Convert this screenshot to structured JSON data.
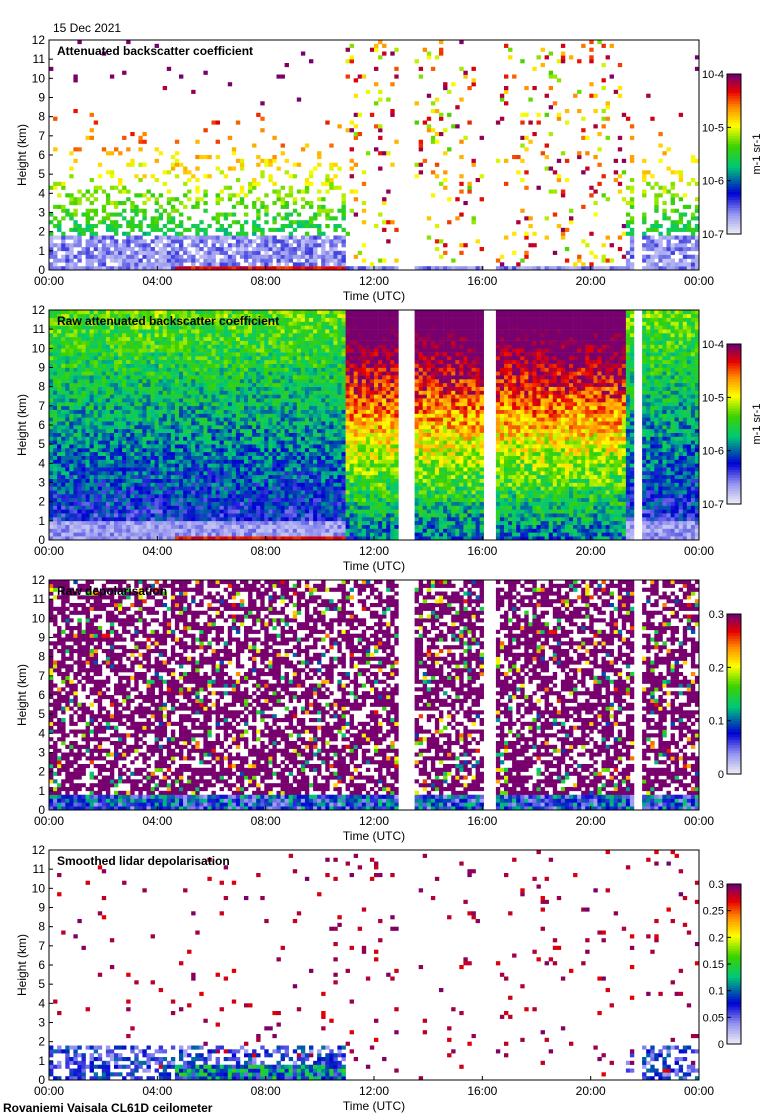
{
  "figure": {
    "date": "15 Dec 2021",
    "footer": "Rovaniemi Vaisala CL61D ceilometer"
  },
  "chart_data": [
    {
      "type": "heatmap",
      "title": "Attenuated backscatter coefficient",
      "xlabel": "Time (UTC)",
      "ylabel": "Height (km)",
      "x_ticks": [
        "00:00",
        "04:00",
        "08:00",
        "12:00",
        "16:00",
        "20:00",
        "00:00"
      ],
      "x_range_hours": [
        0,
        24
      ],
      "y_ticks": [
        0,
        1,
        2,
        3,
        4,
        5,
        6,
        7,
        8,
        9,
        10,
        11,
        12
      ],
      "ylim": [
        0,
        12
      ],
      "colorbar": {
        "scale": "log",
        "ticks": [
          1e-07,
          1e-06,
          1e-05,
          0.0001
        ],
        "tick_labels": [
          "10-7",
          "10-6",
          "10-5",
          "10-4"
        ],
        "unit": "m-1 sr-1"
      },
      "pattern": "filtered"
    },
    {
      "type": "heatmap",
      "title": "Raw attenuated backscatter coefficient",
      "xlabel": "Time (UTC)",
      "ylabel": "Height (km)",
      "x_ticks": [
        "00:00",
        "04:00",
        "08:00",
        "12:00",
        "16:00",
        "20:00",
        "00:00"
      ],
      "x_range_hours": [
        0,
        24
      ],
      "y_ticks": [
        0,
        1,
        2,
        3,
        4,
        5,
        6,
        7,
        8,
        9,
        10,
        11,
        12
      ],
      "ylim": [
        0,
        12
      ],
      "colorbar": {
        "scale": "log",
        "ticks": [
          1e-07,
          1e-06,
          1e-05,
          0.0001
        ],
        "tick_labels": [
          "10-7",
          "10-6",
          "10-5",
          "10-4"
        ],
        "unit": "m-1 sr-1"
      },
      "pattern": "raw_backscatter"
    },
    {
      "type": "heatmap",
      "title": "Raw depolarisation",
      "xlabel": "Time (UTC)",
      "ylabel": "Height (km)",
      "x_ticks": [
        "00:00",
        "04:00",
        "08:00",
        "12:00",
        "16:00",
        "20:00",
        "00:00"
      ],
      "x_range_hours": [
        0,
        24
      ],
      "y_ticks": [
        0,
        1,
        2,
        3,
        4,
        5,
        6,
        7,
        8,
        9,
        10,
        11,
        12
      ],
      "ylim": [
        0,
        12
      ],
      "colorbar": {
        "scale": "linear",
        "ticks": [
          0,
          0.1,
          0.2,
          0.3
        ],
        "tick_labels": [
          "0",
          "0.1",
          "0.2",
          "0.3"
        ],
        "unit": ""
      },
      "pattern": "raw_depol"
    },
    {
      "type": "heatmap",
      "title": "Smoothed lidar depolarisation",
      "xlabel": "Time (UTC)",
      "ylabel": "Height (km)",
      "x_ticks": [
        "00:00",
        "04:00",
        "08:00",
        "12:00",
        "16:00",
        "20:00",
        "00:00"
      ],
      "x_range_hours": [
        0,
        24
      ],
      "y_ticks": [
        0,
        1,
        2,
        3,
        4,
        5,
        6,
        7,
        8,
        9,
        10,
        11,
        12
      ],
      "ylim": [
        0,
        12
      ],
      "colorbar": {
        "scale": "linear",
        "ticks": [
          0,
          0.05,
          0.1,
          0.15,
          0.2,
          0.25,
          0.3
        ],
        "tick_labels": [
          "0",
          "0.05",
          "0.1",
          "0.15",
          "0.2",
          "0.25",
          "0.3"
        ],
        "unit": ""
      },
      "pattern": "smoothed_depol"
    }
  ],
  "data_gaps_hours": [
    [
      12.9,
      13.5
    ],
    [
      16.0,
      16.5
    ],
    [
      21.6,
      21.9
    ]
  ],
  "low_cloud_hours": [
    4.7,
    11.0
  ],
  "colormap": [
    "#f0f0f0",
    "#0000cc",
    "#00d080",
    "#ffff00",
    "#ff0000",
    "#800080"
  ]
}
